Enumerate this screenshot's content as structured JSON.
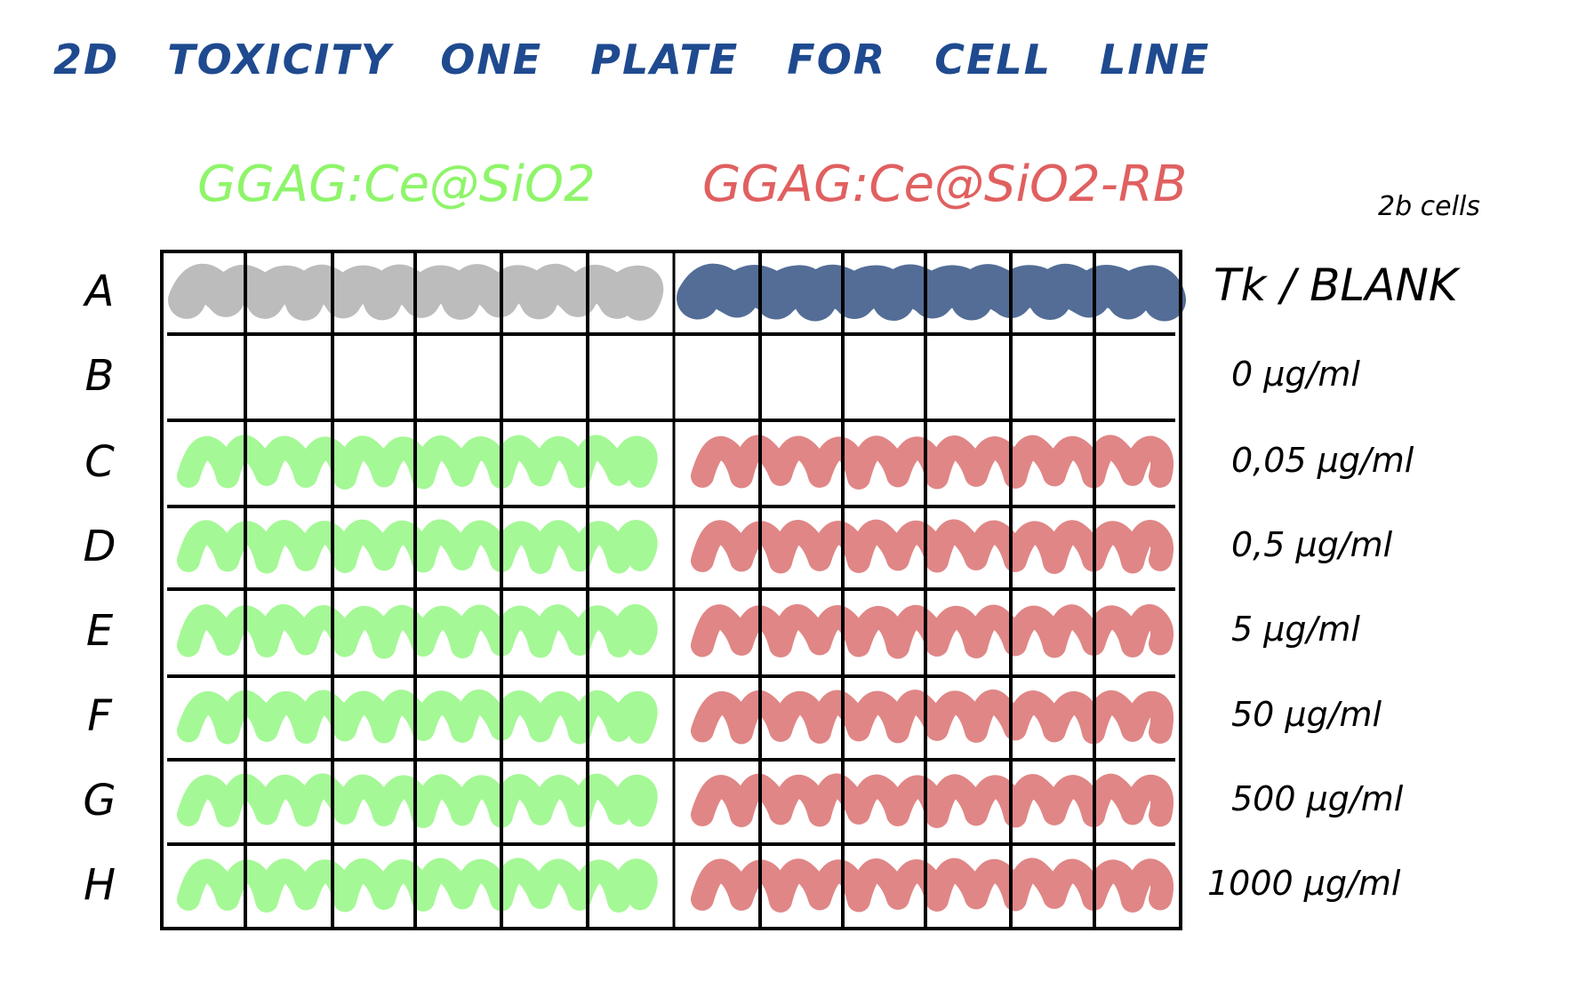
{
  "title": "2D TOXICITY ONE PLATE FOR CELL LINE",
  "groups": [
    {
      "label": "GGAG:Ce@SiO2",
      "color": "#a0f890"
    },
    {
      "label": "GGAG:Ce@SiO2-RB",
      "color": "#de8080"
    }
  ],
  "cells_note": "2b cells",
  "controls_label": "Tk / BLANK",
  "control_colors": {
    "left": "#b8b8b8",
    "right": "#4a6590"
  },
  "rows": [
    {
      "label": "A",
      "concentration": "Tk / BLANK",
      "filled": true
    },
    {
      "label": "B",
      "concentration": "0 µg/ml",
      "filled": false
    },
    {
      "label": "C",
      "concentration": "0,05 µg/ml",
      "filled": true
    },
    {
      "label": "D",
      "concentration": "0,5 µg/ml",
      "filled": true
    },
    {
      "label": "E",
      "concentration": "5 µg/ml",
      "filled": true
    },
    {
      "label": "F",
      "concentration": "50 µg/ml",
      "filled": true
    },
    {
      "label": "G",
      "concentration": "500 µg/ml",
      "filled": true
    },
    {
      "label": "H",
      "concentration": "1000 µg/ml",
      "filled": true
    }
  ],
  "columns_per_group": 6
}
